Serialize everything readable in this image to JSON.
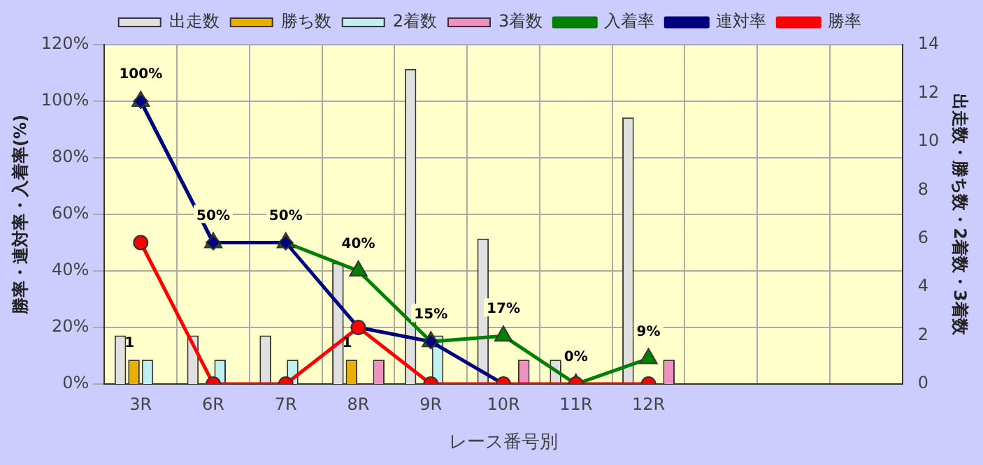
{
  "chart_data": {
    "type": "bar",
    "xlabel": "レース番号別",
    "ylabel": "勝率・連対率・入着率(%)",
    "y2label": "出走数・勝ち数・2着数・3着数",
    "categories": [
      "3R",
      "6R",
      "7R",
      "8R",
      "9R",
      "10R",
      "11R",
      "12R",
      null,
      null,
      null
    ],
    "series": [
      {
        "name": "出走数",
        "axis": "y2",
        "color": "#e0e0e0",
        "values": [
          2,
          2,
          2,
          5,
          13,
          6,
          1,
          11,
          null,
          null,
          null
        ]
      },
      {
        "name": "勝ち数",
        "axis": "y2",
        "color": "#e8b000",
        "values": [
          1,
          0,
          0,
          1,
          0,
          0,
          0,
          0,
          null,
          null,
          null
        ]
      },
      {
        "name": "2着数",
        "axis": "y2",
        "color": "#c0f0f0",
        "values": [
          1,
          1,
          1,
          0,
          2,
          0,
          0,
          0,
          null,
          null,
          null
        ]
      },
      {
        "name": "3着数",
        "axis": "y2",
        "color": "#f090c0",
        "values": [
          0,
          0,
          0,
          1,
          0,
          1,
          0,
          1,
          null,
          null,
          null
        ]
      },
      {
        "name": "入着率",
        "type": "line",
        "marker": "triangle",
        "color": "#008000",
        "values": [
          100,
          50,
          50,
          40,
          15,
          17,
          0,
          9,
          null,
          null,
          null
        ],
        "value_labels": [
          "100%",
          "50%",
          "50%",
          "40%",
          "15%",
          "17%",
          "0%",
          "9%",
          null,
          null,
          null
        ]
      },
      {
        "name": "連対率",
        "type": "line",
        "marker": "diamond",
        "color": "#000080",
        "values": [
          100,
          50,
          50,
          20,
          15,
          0,
          null,
          null,
          null,
          null,
          null
        ]
      },
      {
        "name": "勝率",
        "type": "line",
        "marker": "circle",
        "color": "#ff0000",
        "values": [
          50,
          0,
          0,
          20,
          0,
          0,
          0,
          0,
          null,
          null,
          null
        ]
      }
    ],
    "ylim": [
      0,
      120
    ],
    "yticks": [
      {
        "value": 0,
        "label": "0%"
      },
      {
        "value": 20,
        "label": "20%"
      },
      {
        "value": 40,
        "label": "40%"
      },
      {
        "value": 60,
        "label": "60%"
      },
      {
        "value": 80,
        "label": "80%"
      },
      {
        "value": 100,
        "label": "100%"
      },
      {
        "value": 120,
        "label": "120%"
      }
    ],
    "y2lim": [
      0,
      14
    ],
    "y2ticks": [
      0,
      2,
      4,
      6,
      8,
      10,
      12,
      14
    ],
    "annotations": [
      "1",
      "1"
    ],
    "grid": true,
    "legend": "top"
  }
}
